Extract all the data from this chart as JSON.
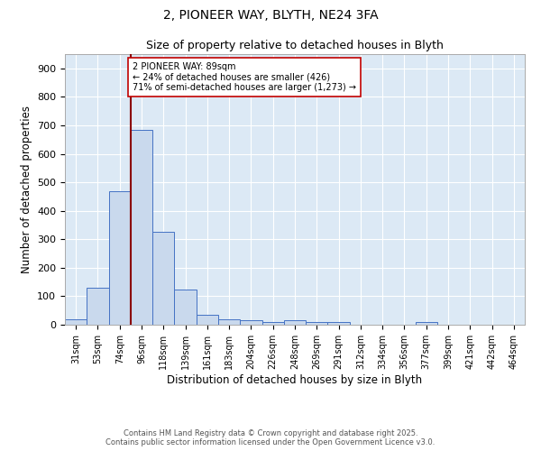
{
  "title_line1": "2, PIONEER WAY, BLYTH, NE24 3FA",
  "title_line2": "Size of property relative to detached houses in Blyth",
  "xlabel": "Distribution of detached houses by size in Blyth",
  "ylabel": "Number of detached properties",
  "bar_labels": [
    "31sqm",
    "53sqm",
    "74sqm",
    "96sqm",
    "118sqm",
    "139sqm",
    "161sqm",
    "183sqm",
    "204sqm",
    "226sqm",
    "248sqm",
    "269sqm",
    "291sqm",
    "312sqm",
    "334sqm",
    "356sqm",
    "377sqm",
    "399sqm",
    "421sqm",
    "442sqm",
    "464sqm"
  ],
  "bar_values": [
    20,
    130,
    470,
    685,
    325,
    125,
    35,
    20,
    15,
    10,
    15,
    10,
    10,
    0,
    0,
    0,
    10,
    0,
    0,
    0,
    0
  ],
  "bar_color": "#c9d9ed",
  "bar_edge_color": "#4472c4",
  "vline_color": "#8b0000",
  "annotation_text": "2 PIONEER WAY: 89sqm\n← 24% of detached houses are smaller (426)\n71% of semi-detached houses are larger (1,273) →",
  "annotation_box_color": "#ffffff",
  "annotation_box_edge": "#c00000",
  "ylim": [
    0,
    950
  ],
  "yticks": [
    0,
    100,
    200,
    300,
    400,
    500,
    600,
    700,
    800,
    900
  ],
  "background_color": "#dce9f5",
  "grid_color": "#ffffff",
  "footer_line1": "Contains HM Land Registry data © Crown copyright and database right 2025.",
  "footer_line2": "Contains public sector information licensed under the Open Government Licence v3.0."
}
